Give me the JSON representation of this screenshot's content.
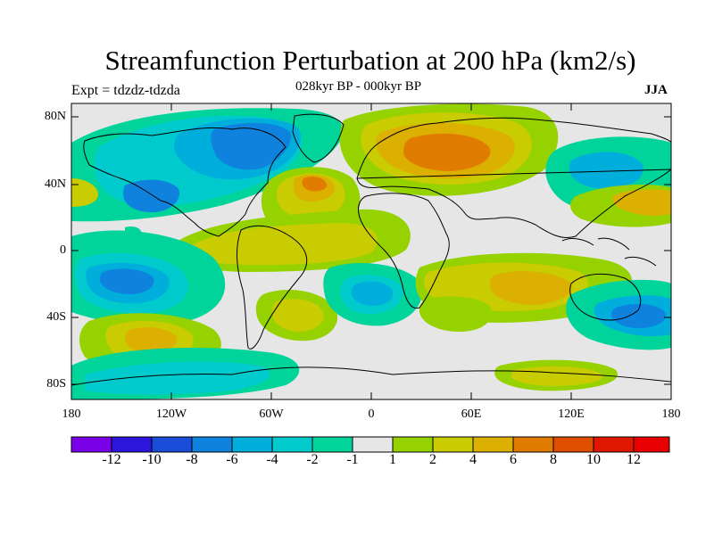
{
  "header": {
    "title": "Streamfunction Perturbation at 200 hPa (km2/s)",
    "subtitle": "028kyr BP - 000kyr BP",
    "left_label": "Expt = tdzdz-tdzda",
    "right_label": "JJA"
  },
  "axes": {
    "y_ticks": [
      "80N",
      "40N",
      "0",
      "40S",
      "80S"
    ],
    "x_ticks": [
      "180",
      "120W",
      "60W",
      "0",
      "60E",
      "120E",
      "180"
    ]
  },
  "colorbar": {
    "labels": [
      "-12",
      "-10",
      "-8",
      "-6",
      "-4",
      "-2",
      "-1",
      "1",
      "2",
      "4",
      "6",
      "8",
      "10",
      "12"
    ],
    "colors": [
      "#7a00e8",
      "#2d16dc",
      "#1a4ed8",
      "#0e82dd",
      "#00aedc",
      "#00cacc",
      "#00d49a",
      "#e6e6e6",
      "#96d200",
      "#c8cc00",
      "#dcb000",
      "#e07d00",
      "#e04e00",
      "#e01800",
      "#e80000"
    ]
  },
  "chart_data": {
    "type": "heatmap",
    "title": "Streamfunction Perturbation at 200 hPa (km2/s)",
    "subtitle": "028kyr BP - 000kyr BP",
    "x_ticks": [
      "180",
      "120W",
      "60W",
      "0",
      "60E",
      "120E",
      "180"
    ],
    "y_ticks": [
      "80N",
      "40N",
      "0",
      "40S",
      "80S"
    ],
    "levels": [
      -12,
      -10,
      -8,
      -6,
      -4,
      -2,
      -1,
      1,
      2,
      4,
      6,
      8,
      10,
      12
    ],
    "xlim": [
      -180,
      180
    ],
    "ylim": [
      -90,
      90
    ]
  }
}
